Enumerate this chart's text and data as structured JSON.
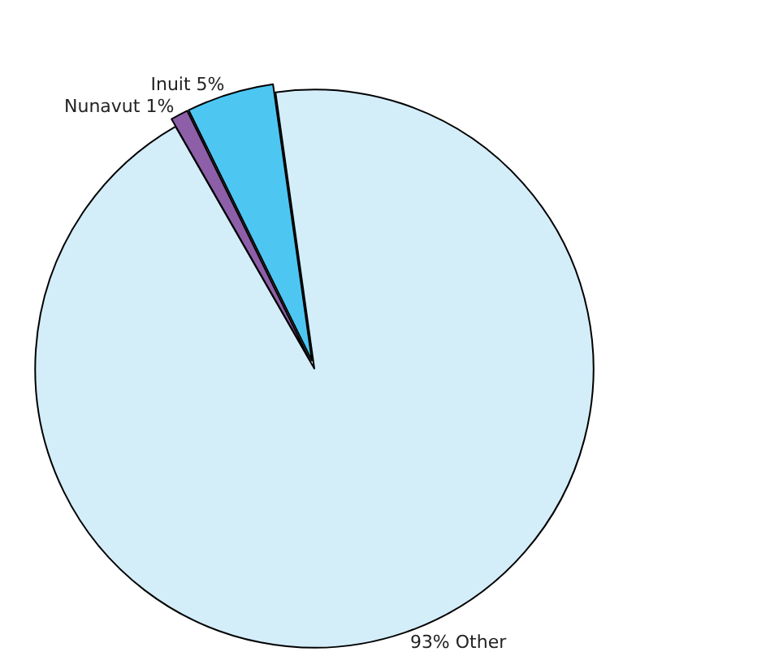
{
  "chart_data": {
    "type": "pie",
    "categories": [
      "93% Other",
      "Nunavut 1%",
      "Inuit 5%"
    ],
    "values": [
      93,
      1,
      5
    ],
    "colors": [
      "#d3edf9",
      "#8d5fa8",
      "#4dc6f2"
    ],
    "legend": false
  }
}
